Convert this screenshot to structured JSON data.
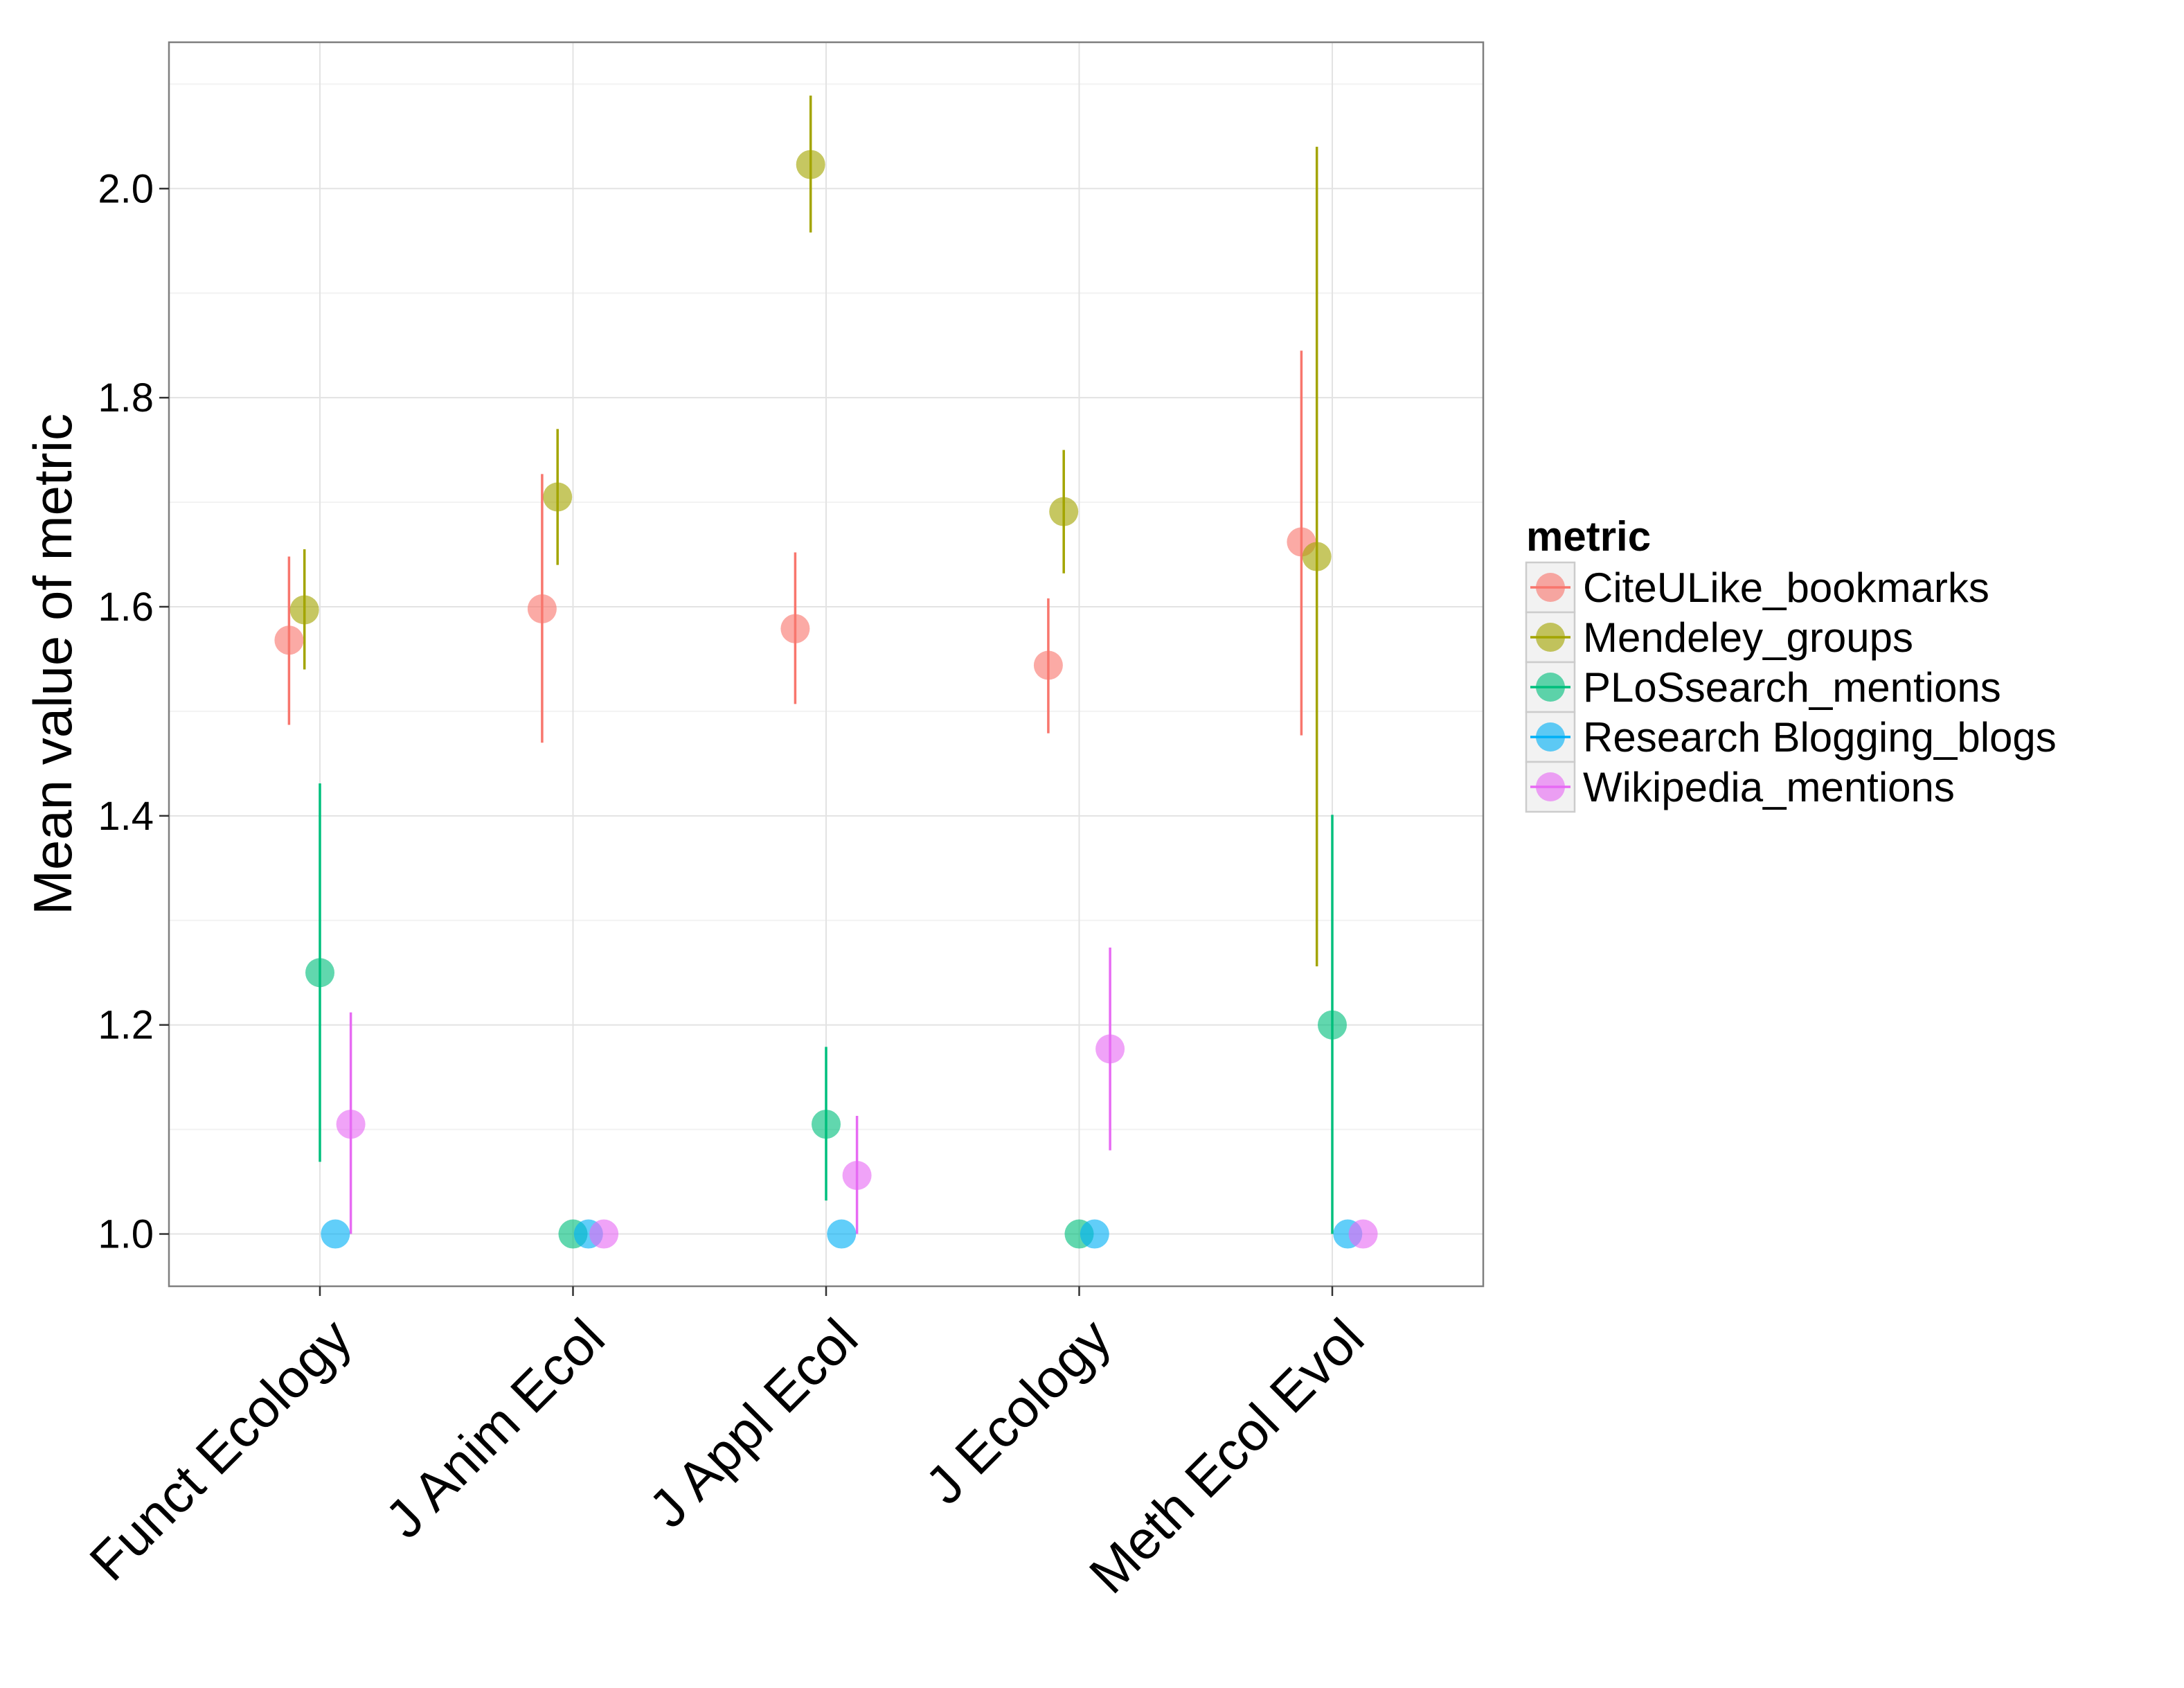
{
  "chart_data": {
    "type": "scatter",
    "xlabel": "",
    "ylabel": "Mean value of metric",
    "ylim": [
      0.95,
      2.14
    ],
    "yticks": [
      "1.0",
      "1.2",
      "1.4",
      "1.6",
      "1.8",
      "2.0"
    ],
    "categories": [
      "Funct Ecology",
      "J Anim Ecol",
      "J Appl Ecol",
      "J Ecology",
      "Meth Ecol Evol"
    ],
    "grid": true,
    "legend": {
      "title": "metric",
      "position": "right"
    },
    "series": [
      {
        "name": "CiteULike_bookmarks",
        "color": "#F8766D",
        "points": [
          {
            "mean": 1.568,
            "lower": 1.487,
            "upper": 1.648
          },
          {
            "mean": 1.598,
            "lower": 1.47,
            "upper": 1.727
          },
          {
            "mean": 1.579,
            "lower": 1.507,
            "upper": 1.652
          },
          {
            "mean": 1.544,
            "lower": 1.479,
            "upper": 1.608
          },
          {
            "mean": 1.662,
            "lower": 1.477,
            "upper": 1.845
          }
        ]
      },
      {
        "name": "Mendeley_groups",
        "color": "#A3A500",
        "points": [
          {
            "mean": 1.597,
            "lower": 1.54,
            "upper": 1.655
          },
          {
            "mean": 1.705,
            "lower": 1.64,
            "upper": 1.77
          },
          {
            "mean": 2.023,
            "lower": 1.958,
            "upper": 2.089
          },
          {
            "mean": 1.691,
            "lower": 1.632,
            "upper": 1.75
          },
          {
            "mean": 1.648,
            "lower": 1.256,
            "upper": 2.04
          }
        ]
      },
      {
        "name": "PLoSsearch_mentions",
        "color": "#00BF7D",
        "points": [
          {
            "mean": 1.25,
            "lower": 1.069,
            "upper": 1.431
          },
          {
            "mean": 1.0,
            "lower": 1.0,
            "upper": 1.0
          },
          {
            "mean": 1.105,
            "lower": 1.032,
            "upper": 1.179
          },
          {
            "mean": 1.0,
            "lower": 1.0,
            "upper": 1.0
          },
          {
            "mean": 1.2,
            "lower": 1.0,
            "upper": 1.401
          }
        ]
      },
      {
        "name": "Research Blogging_blogs",
        "color": "#00B0F6",
        "points": [
          {
            "mean": 1.0,
            "lower": 1.0,
            "upper": 1.0
          },
          {
            "mean": 1.0,
            "lower": 1.0,
            "upper": 1.0
          },
          {
            "mean": 1.0,
            "lower": 1.0,
            "upper": 1.0
          },
          {
            "mean": 1.0,
            "lower": 1.0,
            "upper": 1.0
          },
          {
            "mean": 1.0,
            "lower": 1.0,
            "upper": 1.0
          }
        ]
      },
      {
        "name": "Wikipedia_mentions",
        "color": "#E76BF3",
        "points": [
          {
            "mean": 1.105,
            "lower": 1.0,
            "upper": 1.212
          },
          {
            "mean": 1.0,
            "lower": 1.0,
            "upper": 1.0
          },
          {
            "mean": 1.056,
            "lower": 1.0,
            "upper": 1.113
          },
          {
            "mean": 1.177,
            "lower": 1.08,
            "upper": 1.274
          },
          {
            "mean": 1.0,
            "lower": 1.0,
            "upper": 1.0
          }
        ]
      }
    ]
  }
}
